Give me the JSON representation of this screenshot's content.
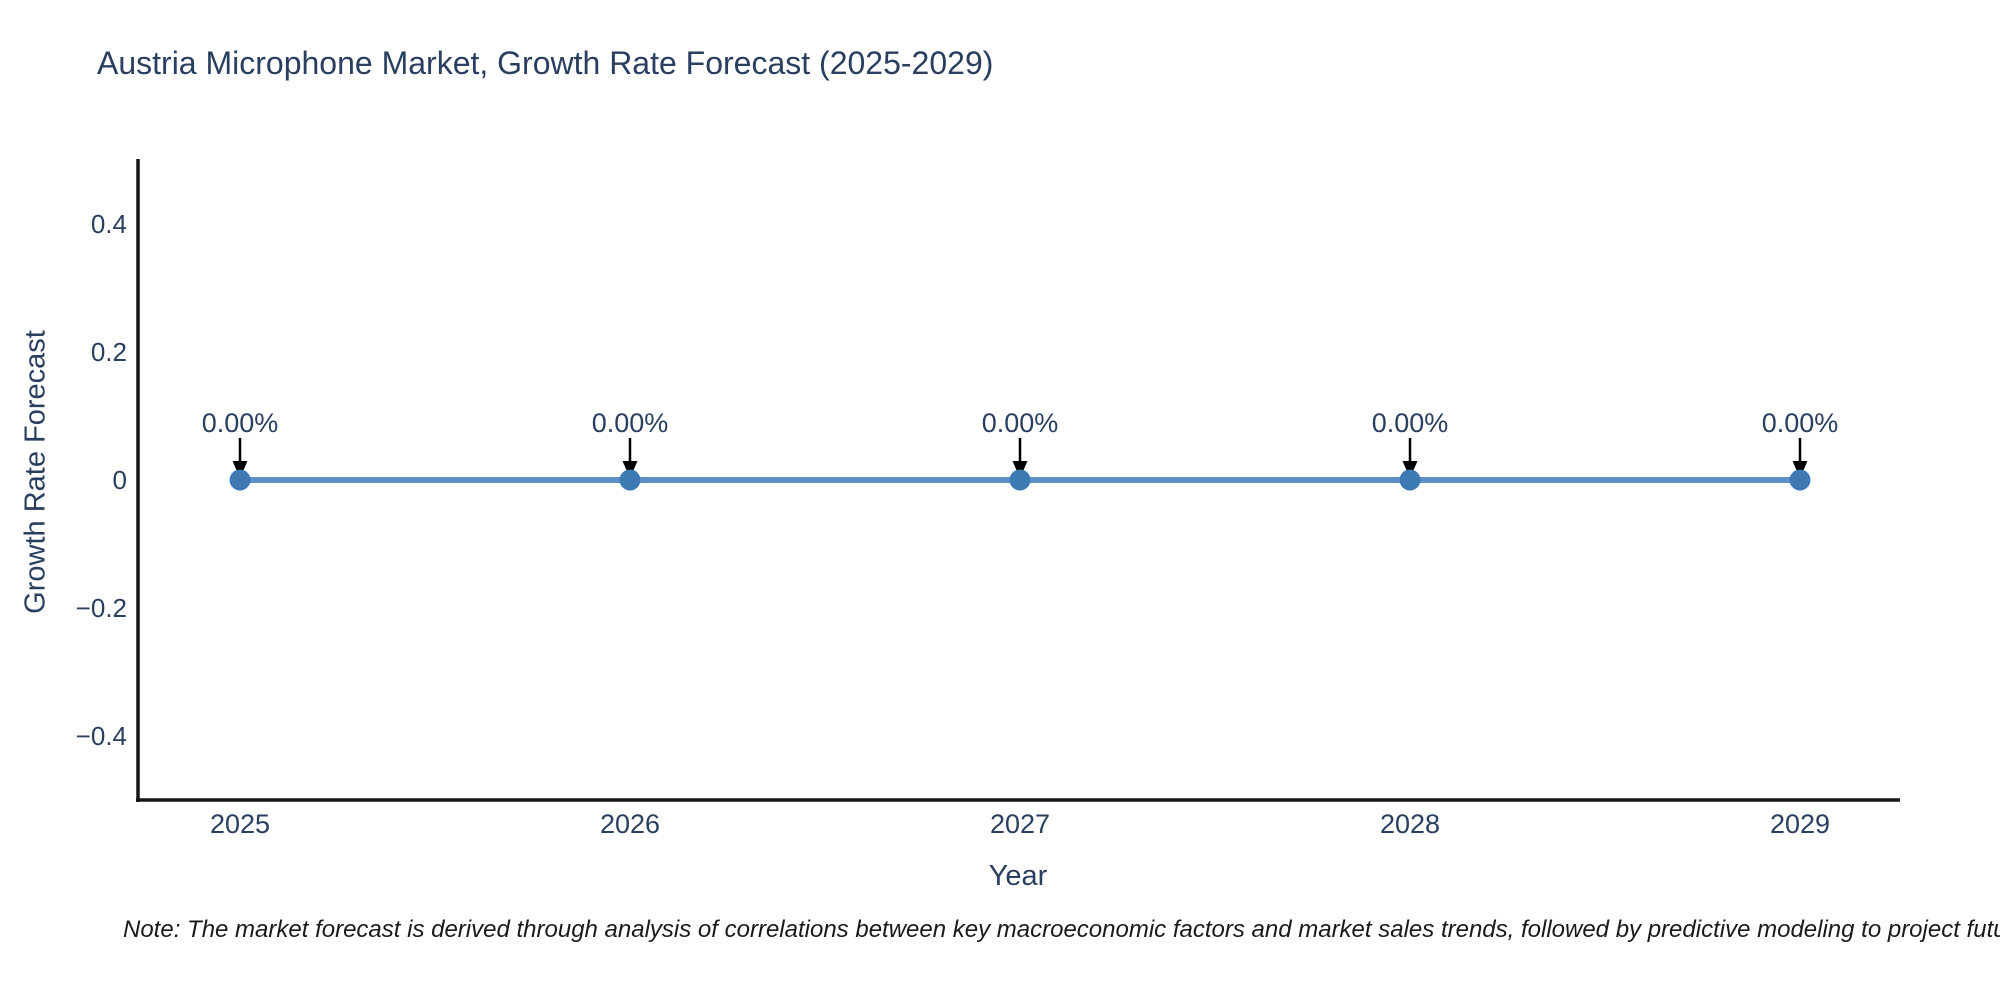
{
  "header": {
    "title": "Austria Microphone Market, Growth Rate Forecast (2025-2029)"
  },
  "note": {
    "text": "Note: The market forecast is derived through analysis of correlations between key macroeconomic factors and market sales trends, followed by predictive modeling to project future sales"
  },
  "chart_data": {
    "type": "line",
    "title": "Austria Microphone Market, Growth Rate Forecast (2025-2029)",
    "xlabel": "Year",
    "ylabel": "Growth Rate Forecast",
    "x": [
      2025,
      2026,
      2027,
      2028,
      2029
    ],
    "series": [
      {
        "name": "Growth Rate Forecast",
        "values": [
          0,
          0,
          0,
          0,
          0
        ]
      }
    ],
    "point_labels": [
      "0.00%",
      "0.00%",
      "0.00%",
      "0.00%",
      "0.00%"
    ],
    "xticks": [
      "2025",
      "2026",
      "2027",
      "2028",
      "2029"
    ],
    "yticks": {
      "values": [
        0.4,
        0.2,
        0,
        -0.2,
        -0.4
      ],
      "labels": [
        "0.4",
        "0.2",
        "0",
        "−0.2",
        "−0.4"
      ]
    },
    "ylim": [
      -0.5,
      0.5
    ],
    "grid": false,
    "legend_position": "none",
    "colors": {
      "line": "#5e92c5",
      "marker": "#3d79b3",
      "axis": "#161616",
      "arrow": "#000000",
      "text": "#2a3f5f",
      "note_text": "#1a1a1a"
    }
  }
}
